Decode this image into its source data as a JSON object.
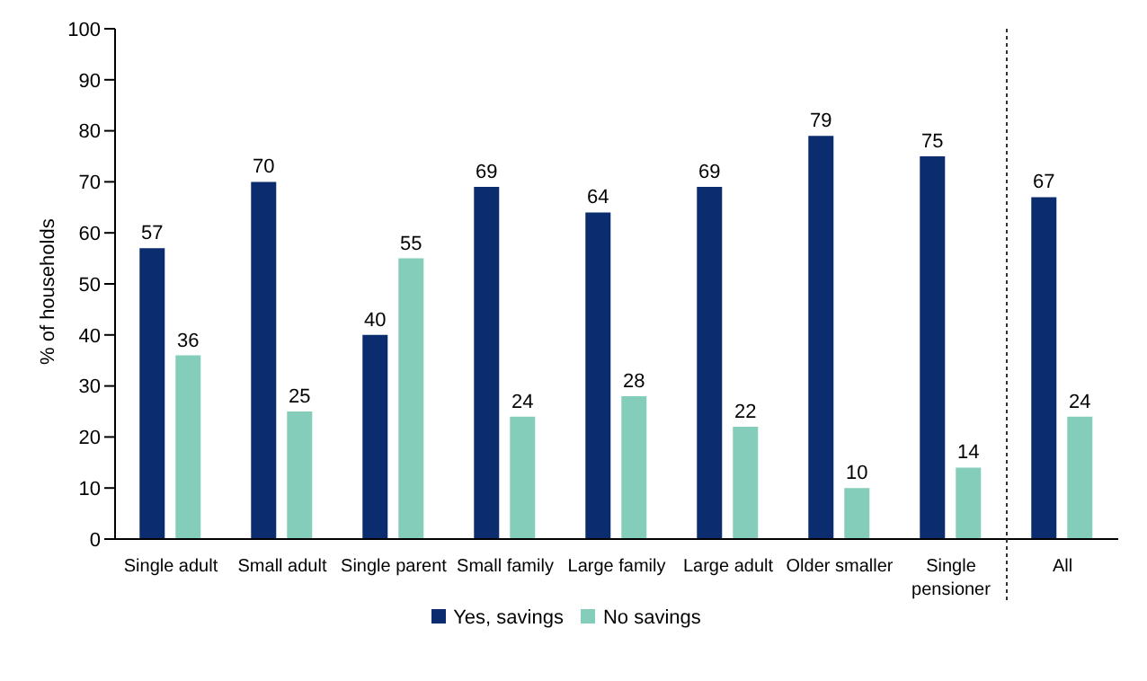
{
  "chart_data": {
    "type": "bar",
    "ylabel": "% of households",
    "categories": [
      "Single adult",
      "Small adult",
      "Single parent",
      "Small family",
      "Large family",
      "Large adult",
      "Older smaller",
      "Single pensioner",
      "All"
    ],
    "series": [
      {
        "name": "Yes, savings",
        "color": "#0b2c6e",
        "values": [
          57,
          70,
          40,
          69,
          64,
          69,
          79,
          75,
          67
        ]
      },
      {
        "name": "No savings",
        "color": "#84cdbb",
        "values": [
          36,
          25,
          55,
          24,
          28,
          22,
          10,
          14,
          24
        ]
      }
    ],
    "ylim": [
      0,
      100
    ],
    "yticks": [
      0,
      10,
      20,
      30,
      40,
      50,
      60,
      70,
      80,
      90,
      100
    ],
    "legend": "bottom",
    "data_labels": true
  }
}
